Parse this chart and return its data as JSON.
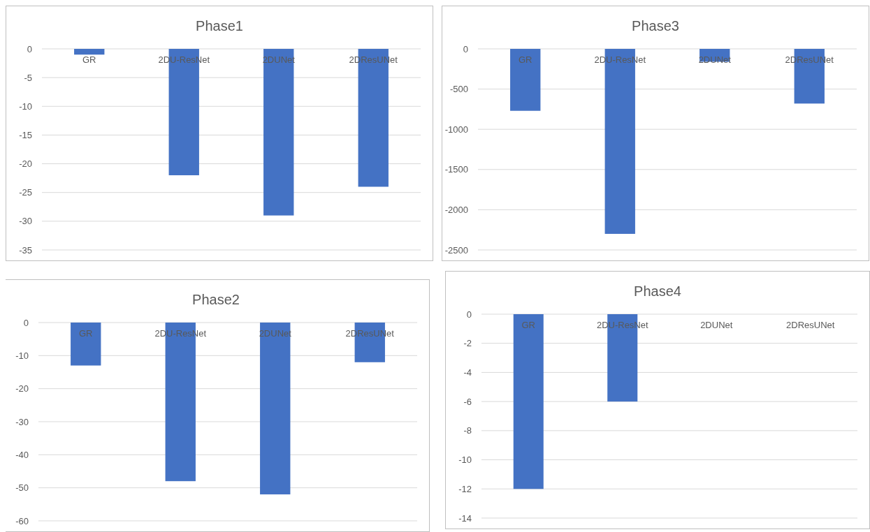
{
  "chart_data": [
    {
      "type": "bar",
      "title": "Phase1",
      "categories": [
        "GR",
        "2DU-ResNet",
        "2DUNet",
        "2DResUNet"
      ],
      "values": [
        -1,
        -22,
        -29,
        -24
      ],
      "color": "#4472c4",
      "ylim": [
        -35,
        0
      ],
      "yticks": [
        -35,
        -30,
        -25,
        -20,
        -15,
        -10,
        -5,
        0
      ],
      "grid": "y"
    },
    {
      "type": "bar",
      "title": "Phase3",
      "categories": [
        "GR",
        "2DU-ResNet",
        "2DUNet",
        "2DResUNet"
      ],
      "values": [
        -770,
        -2300,
        -160,
        -680
      ],
      "color": "#4472c4",
      "ylim": [
        -2500,
        0
      ],
      "yticks": [
        -2500,
        -2000,
        -1500,
        -1000,
        -500,
        0
      ],
      "grid": "y"
    },
    {
      "type": "bar",
      "title": "Phase2",
      "categories": [
        "GR",
        "2DU-ResNet",
        "2DUNet",
        "2DResUNet"
      ],
      "values": [
        -13,
        -48,
        -52,
        -12
      ],
      "color": "#4472c4",
      "ylim": [
        -60,
        0
      ],
      "yticks": [
        -60,
        -50,
        -40,
        -30,
        -20,
        -10,
        0
      ],
      "grid": "y"
    },
    {
      "type": "bar",
      "title": "Phase4",
      "categories": [
        "GR",
        "2DU-ResNet",
        "2DUNet",
        "2DResUNet"
      ],
      "values": [
        -12,
        -6,
        0,
        0
      ],
      "color": "#4472c4",
      "ylim": [
        -14,
        0
      ],
      "yticks": [
        -14,
        -12,
        -10,
        -8,
        -6,
        -4,
        -2,
        0
      ],
      "grid": "y"
    }
  ]
}
